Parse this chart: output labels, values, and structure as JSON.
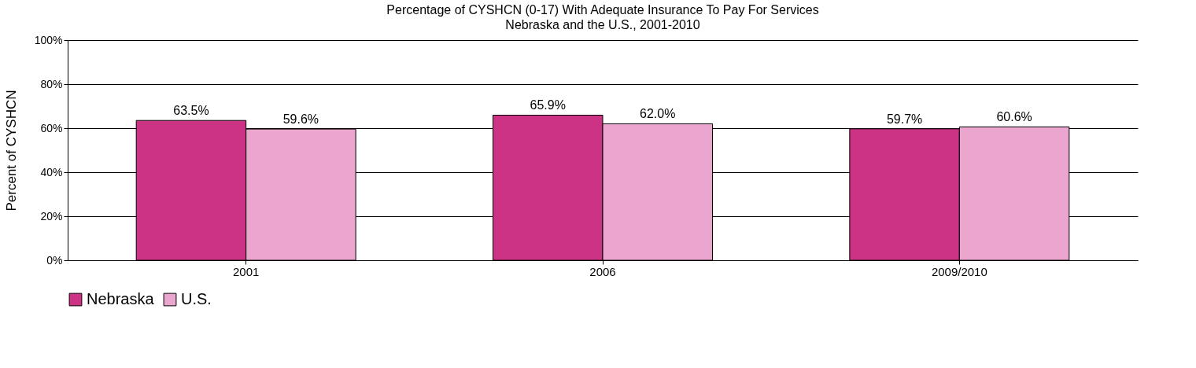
{
  "chart_data": {
    "type": "bar",
    "title": "Percentage of CYSHCN (0-17) With Adequate Insurance To Pay For Services",
    "subtitle": "Nebraska and the U.S., 2001-2010",
    "ylabel": "Percent of CYSHCN",
    "categories": [
      "2001",
      "2006",
      "2009/2010"
    ],
    "series": [
      {
        "name": "Nebraska",
        "color": "#cc3385",
        "values": [
          63.5,
          65.9,
          59.7
        ],
        "value_labels": [
          "63.5%",
          "65.9%",
          "59.7%"
        ]
      },
      {
        "name": "U.S.",
        "color": "#eaa6cf",
        "values": [
          59.6,
          62.0,
          60.6
        ],
        "value_labels": [
          "59.6%",
          "62.0%",
          "60.6%"
        ]
      }
    ],
    "ylim": [
      0,
      100
    ],
    "yticks": [
      {
        "value": 0,
        "label": "0%"
      },
      {
        "value": 20,
        "label": "20%"
      },
      {
        "value": 40,
        "label": "40%"
      },
      {
        "value": 60,
        "label": "60%"
      },
      {
        "value": 80,
        "label": "80%"
      },
      {
        "value": 100,
        "label": "100%"
      }
    ],
    "grid": "y",
    "legend": "bottom"
  }
}
